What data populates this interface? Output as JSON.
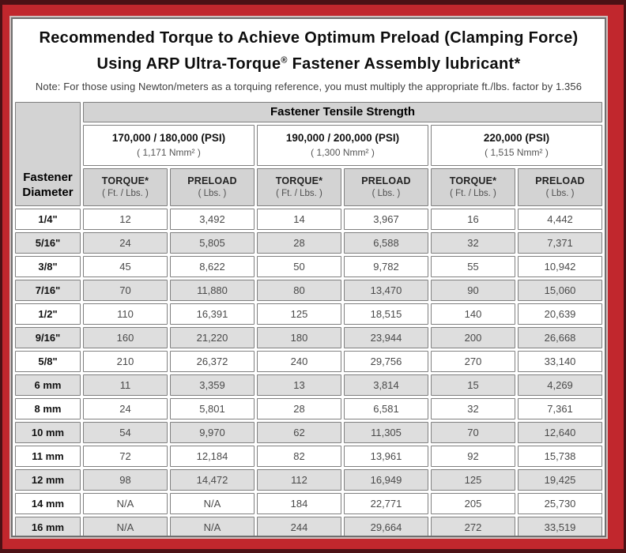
{
  "title": {
    "line1": "Recommended Torque to Achieve Optimum Preload (Clamping Force)",
    "line2_before_reg": "Using ARP Ultra-Torque",
    "reg_mark": "®",
    "line2_after_reg": " Fastener Assembly lubricant*"
  },
  "note": "Note: For those using Newton/meters as a torquing reference, you must multiply the appropriate ft./lbs. factor by 1.356",
  "table": {
    "tensile_header": "Fastener Tensile Strength",
    "diameter_header_line1": "Fastener",
    "diameter_header_line2": "Diameter",
    "groups": [
      {
        "psi": "170,000 / 180,000 (PSI)",
        "nmm": "( 1,171 Nmm² )"
      },
      {
        "psi": "190,000 / 200,000 (PSI)",
        "nmm": "( 1,300 Nmm² )"
      },
      {
        "psi": "220,000 (PSI)",
        "nmm": "( 1,515 Nmm² )"
      }
    ],
    "col_headers": {
      "torque_label": "TORQUE*",
      "torque_unit": "( Ft. / Lbs. )",
      "preload_label": "PRELOAD",
      "preload_unit": "( Lbs. )"
    },
    "rows": [
      {
        "dia": "1/4\"",
        "values": [
          "12",
          "3,492",
          "14",
          "3,967",
          "16",
          "4,442"
        ]
      },
      {
        "dia": "5/16\"",
        "values": [
          "24",
          "5,805",
          "28",
          "6,588",
          "32",
          "7,371"
        ]
      },
      {
        "dia": "3/8\"",
        "values": [
          "45",
          "8,622",
          "50",
          "9,782",
          "55",
          "10,942"
        ]
      },
      {
        "dia": "7/16\"",
        "values": [
          "70",
          "11,880",
          "80",
          "13,470",
          "90",
          "15,060"
        ]
      },
      {
        "dia": "1/2\"",
        "values": [
          "110",
          "16,391",
          "125",
          "18,515",
          "140",
          "20,639"
        ]
      },
      {
        "dia": "9/16\"",
        "values": [
          "160",
          "21,220",
          "180",
          "23,944",
          "200",
          "26,668"
        ]
      },
      {
        "dia": "5/8\"",
        "values": [
          "210",
          "26,372",
          "240",
          "29,756",
          "270",
          "33,140"
        ]
      },
      {
        "dia": "6 mm",
        "values": [
          "11",
          "3,359",
          "13",
          "3,814",
          "15",
          "4,269"
        ]
      },
      {
        "dia": "8 mm",
        "values": [
          "24",
          "5,801",
          "28",
          "6,581",
          "32",
          "7,361"
        ]
      },
      {
        "dia": "10 mm",
        "values": [
          "54",
          "9,970",
          "62",
          "11,305",
          "70",
          "12,640"
        ]
      },
      {
        "dia": "11 mm",
        "values": [
          "72",
          "12,184",
          "82",
          "13,961",
          "92",
          "15,738"
        ]
      },
      {
        "dia": "12 mm",
        "values": [
          "98",
          "14,472",
          "112",
          "16,949",
          "125",
          "19,425"
        ]
      },
      {
        "dia": "14 mm",
        "values": [
          "N/A",
          "N/A",
          "184",
          "22,771",
          "205",
          "25,730"
        ]
      },
      {
        "dia": "16 mm",
        "values": [
          "N/A",
          "N/A",
          "244",
          "29,664",
          "272",
          "33,519"
        ]
      }
    ]
  },
  "colors": {
    "frame_red": "#c1272d",
    "frame_dark_edge": "#4c1115",
    "header_gray": "#d3d3d3",
    "alt_row_gray": "#dedede",
    "cell_border": "#7f7f7f"
  }
}
